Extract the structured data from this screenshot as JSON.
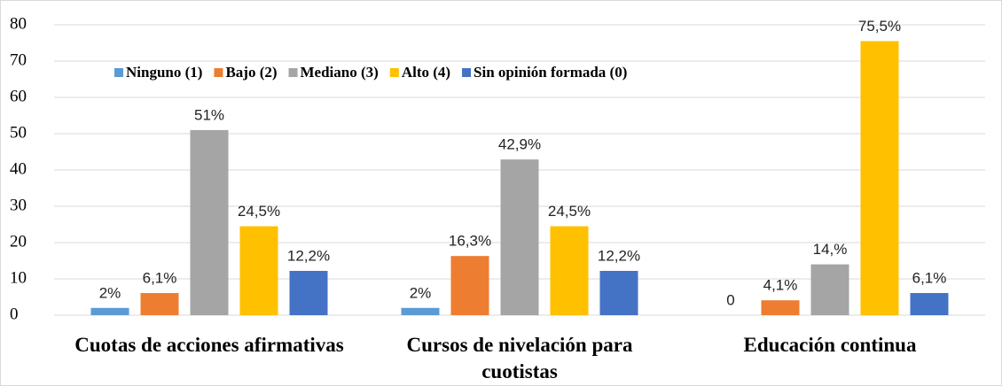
{
  "chart_data": {
    "type": "bar",
    "categories": [
      "Cuotas de acciones afirmativas",
      "Cursos de nivelación para cuotistas",
      "Educación continua"
    ],
    "series": [
      {
        "name": "Ninguno (1)",
        "color": "#5b9bd5",
        "values": [
          2,
          2,
          0
        ],
        "value_labels": [
          "2%",
          "2%",
          "0"
        ]
      },
      {
        "name": "Bajo (2)",
        "color": "#ed7d31",
        "values": [
          6.1,
          16.3,
          4.1
        ],
        "value_labels": [
          "6,1%",
          "16,3%",
          "4,1%"
        ]
      },
      {
        "name": "Mediano (3)",
        "color": "#a5a5a5",
        "values": [
          51,
          42.9,
          14
        ],
        "value_labels": [
          "51%",
          "42,9%",
          "14,%"
        ]
      },
      {
        "name": "Alto (4)",
        "color": "#ffc000",
        "values": [
          24.5,
          24.5,
          75.5
        ],
        "value_labels": [
          "24,5%",
          "24,5%",
          "75,5%"
        ]
      },
      {
        "name": "Sin opinión formada (0)",
        "color": "#4472c4",
        "values": [
          12.2,
          12.2,
          6.1
        ],
        "value_labels": [
          "12,2%",
          "12,2%",
          "6,1%"
        ]
      }
    ],
    "ylim": [
      0,
      80
    ],
    "yticks": [
      0,
      10,
      20,
      30,
      40,
      50,
      60,
      70,
      80
    ],
    "grid": true
  }
}
